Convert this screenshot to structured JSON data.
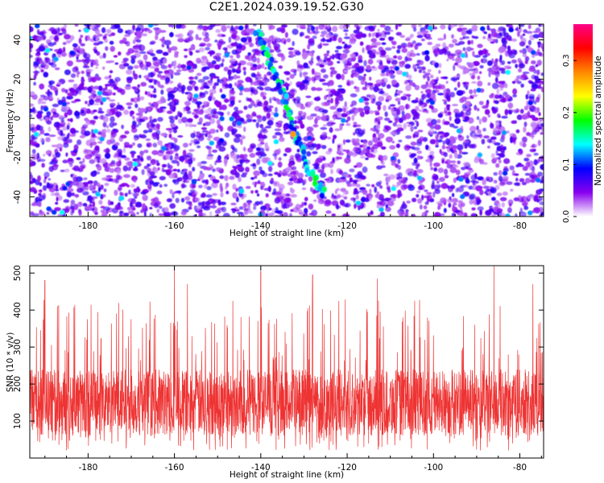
{
  "title": "C2E1.2024.039.19.52.G30",
  "chart_data": [
    {
      "type": "heatmap",
      "xlabel": "Height of straight line (km)",
      "ylabel": "Frequency (Hz)",
      "xlim": [
        -193.5,
        -74.5
      ],
      "ylim": [
        -50,
        48
      ],
      "xticks": [
        -180,
        -160,
        -140,
        -120,
        -100,
        -80
      ],
      "yticks": [
        -40,
        -20,
        0,
        20,
        40
      ],
      "colorbar": {
        "label": "Normalized spectral amplitude",
        "range": [
          0.0,
          0.37
        ],
        "ticks": [
          0.0,
          0.1,
          0.2,
          0.3
        ],
        "colors": [
          "#ffffff",
          "#8800ee",
          "#0000ff",
          "#00ffff",
          "#00ff00",
          "#ffff00",
          "#ff8800",
          "#ff0000",
          "#ff0088"
        ]
      },
      "noise_level": [
        0.02,
        0.08
      ],
      "feature": {
        "description": "diagonal streak of high amplitude",
        "points": [
          [
            -141,
            45
          ],
          [
            -138,
            30
          ],
          [
            -135,
            14
          ],
          [
            -132,
            -8
          ],
          [
            -129,
            -25
          ],
          [
            -125,
            -40
          ]
        ],
        "peak_value": 0.27
      }
    },
    {
      "type": "line",
      "xlabel": "Height of straight line (km)",
      "ylabel": "SNR (10 * v/v)",
      "xlim": [
        -193.5,
        -74.5
      ],
      "ylim": [
        0,
        520
      ],
      "xticks": [
        -180,
        -160,
        -140,
        -120,
        -100,
        -80
      ],
      "yticks": [
        100,
        200,
        300,
        400,
        500
      ],
      "color": "#ee3333",
      "baseline": 150,
      "typical_range": [
        60,
        260
      ],
      "peak_values": [
        [
          -190,
          480
        ],
        [
          -160,
          515
        ],
        [
          -157,
          470
        ],
        [
          -140,
          505
        ],
        [
          -128,
          495
        ],
        [
          -113,
          485
        ],
        [
          -86,
          520
        ],
        [
          -77,
          470
        ]
      ]
    }
  ]
}
